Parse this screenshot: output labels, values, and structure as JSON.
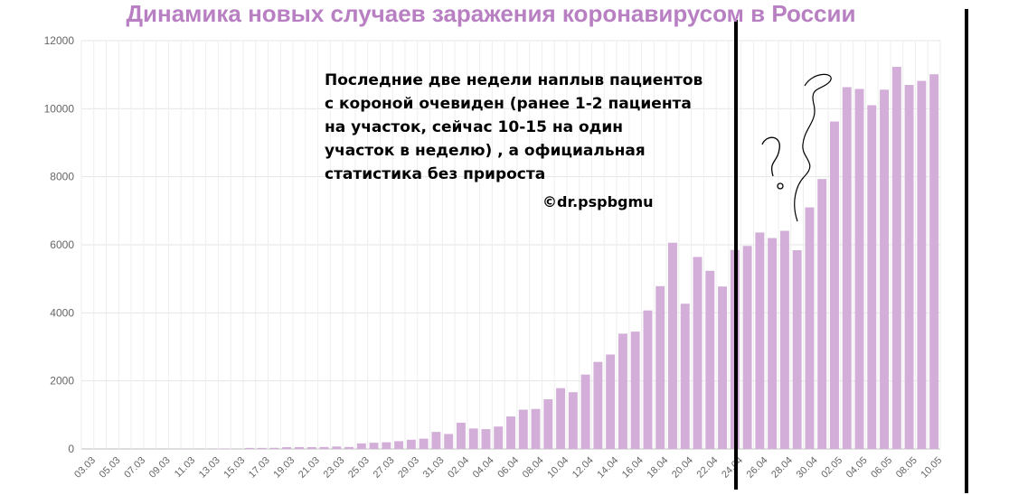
{
  "chart_data": {
    "type": "bar",
    "title": "Динамика новых случаев заражения коронавирусом в России",
    "xlabel": "",
    "ylabel": "",
    "ylim": [
      0,
      12000
    ],
    "yticks": [
      0,
      2000,
      4000,
      6000,
      8000,
      10000,
      12000
    ],
    "grid": true,
    "bar_color": "#d2aed8",
    "title_color": "#b87fc3",
    "categories": [
      "03.03",
      "04.03",
      "05.03",
      "06.03",
      "07.03",
      "08.03",
      "09.03",
      "10.03",
      "11.03",
      "12.03",
      "13.03",
      "14.03",
      "15.03",
      "16.03",
      "17.03",
      "18.03",
      "19.03",
      "20.03",
      "21.03",
      "22.03",
      "23.03",
      "24.03",
      "25.03",
      "26.03",
      "27.03",
      "28.03",
      "29.03",
      "30.03",
      "31.03",
      "01.04",
      "02.04",
      "03.04",
      "04.04",
      "05.04",
      "06.04",
      "07.04",
      "08.04",
      "09.04",
      "10.04",
      "11.04",
      "12.04",
      "13.04",
      "14.04",
      "15.04",
      "16.04",
      "17.04",
      "18.04",
      "19.04",
      "20.04",
      "21.04",
      "22.04",
      "23.04",
      "24.04",
      "25.04",
      "26.04",
      "27.04",
      "28.04",
      "29.04",
      "30.04",
      "01.05",
      "02.05",
      "03.05",
      "04.05",
      "05.05",
      "06.05",
      "07.05",
      "08.05",
      "09.05",
      "10.05"
    ],
    "tick_labels": [
      "03.03",
      "05.03",
      "07.03",
      "09.03",
      "11.03",
      "13.03",
      "15.03",
      "17.03",
      "19.03",
      "21.03",
      "23.03",
      "25.03",
      "27.03",
      "29.03",
      "31.03",
      "02.04",
      "04.04",
      "06.04",
      "08.04",
      "10.04",
      "12.04",
      "14.04",
      "16.04",
      "18.04",
      "20.04",
      "22.04",
      "24.04",
      "26.04",
      "28.04",
      "30.04",
      "02.05",
      "04.05",
      "06.05",
      "08.05",
      "10.05"
    ],
    "values": [
      1,
      0,
      0,
      0,
      3,
      3,
      0,
      3,
      8,
      0,
      6,
      14,
      4,
      30,
      30,
      33,
      52,
      54,
      53,
      57,
      71,
      57,
      163,
      182,
      196,
      228,
      270,
      302,
      500,
      440,
      771,
      601,
      582,
      658,
      954,
      1154,
      1175,
      1459,
      1786,
      1667,
      2186,
      2558,
      2774,
      3388,
      3448,
      4070,
      4785,
      6060,
      4268,
      5642,
      5236,
      4774,
      5849,
      5966,
      6361,
      6198,
      6411,
      5841,
      7099,
      7933,
      9623,
      10633,
      10581,
      10102,
      10559,
      11231,
      10699,
      10817,
      11012
    ]
  },
  "annotation": {
    "text": "Последние две недели наплыв пациентов\nс короной очевиден (ранее 1-2 пациента\nна участок, сейчас 10-15 на один\nучасток в неделю) , а официальная\nстатистика без прироста",
    "signature": "©dr.pspbgmu"
  }
}
